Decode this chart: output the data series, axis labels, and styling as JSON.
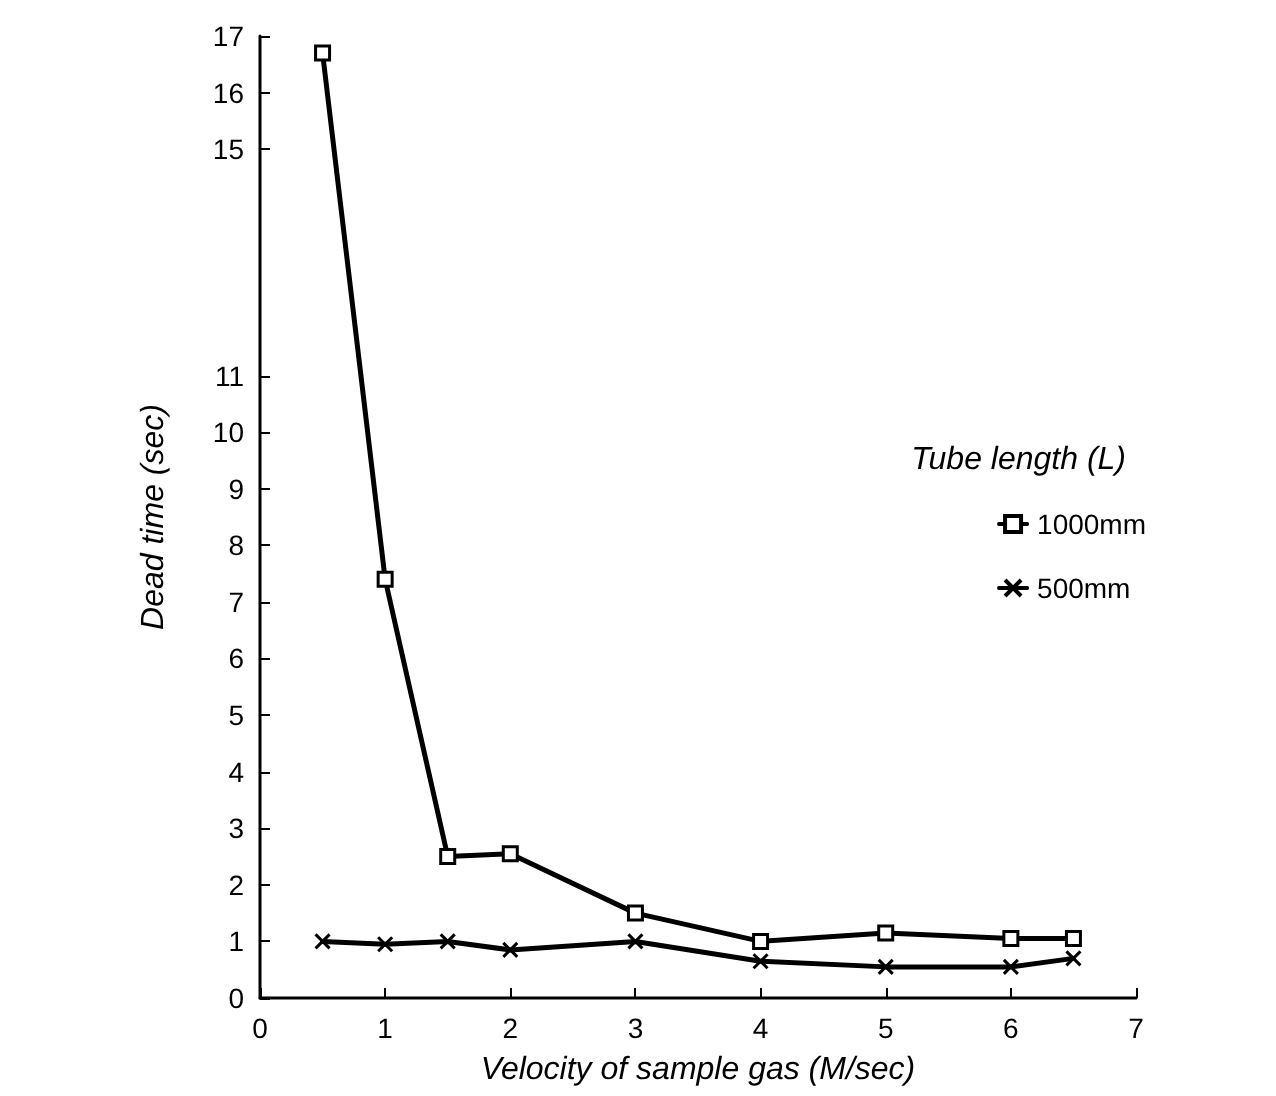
{
  "chart_data": {
    "type": "line",
    "xlabel": "Velocity of sample gas (M/sec)",
    "ylabel": "Dead time (sec)",
    "legend_title": "Tube length (L)",
    "x": [
      0.5,
      1,
      1.5,
      2,
      3,
      4,
      5,
      6,
      6.5
    ],
    "series": [
      {
        "name": "1000mm",
        "color": "#000000",
        "marker": "square",
        "values": [
          16.7,
          7.4,
          2.5,
          2.55,
          1.5,
          1.0,
          1.15,
          1.05,
          1.05
        ]
      },
      {
        "name": "500mm",
        "color": "#000000",
        "marker": "cross",
        "values": [
          1.0,
          0.95,
          1.0,
          0.85,
          1.0,
          0.65,
          0.55,
          0.55,
          0.7
        ]
      }
    ],
    "xlim": [
      0,
      7
    ],
    "xticks": [
      0,
      1,
      2,
      3,
      4,
      5,
      6,
      7
    ],
    "ylim": [
      0,
      17
    ],
    "yticks": [
      0,
      1,
      2,
      3,
      4,
      5,
      6,
      7,
      8,
      9,
      10,
      11,
      15,
      16,
      17
    ],
    "grid": false,
    "legend": "right",
    "line_style": "solid"
  }
}
